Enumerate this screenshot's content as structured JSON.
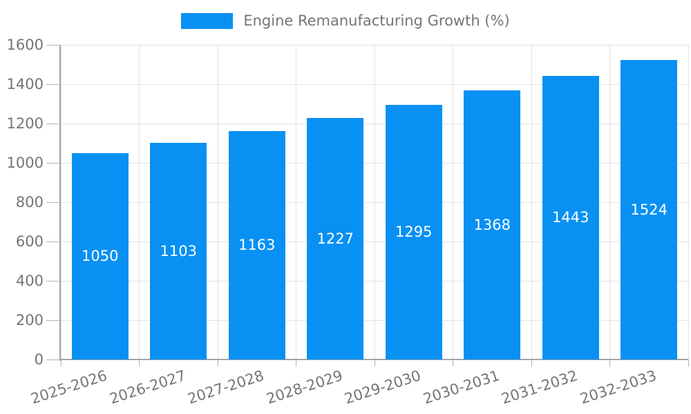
{
  "legend": {
    "label": "Engine Remanufacturing Growth (%)"
  },
  "colors": {
    "bar": "#0891f3",
    "axis_text": "#757575",
    "bar_label_text": "#ffffff",
    "gridline": "#e3e3e3",
    "tick": "#b3b3b3",
    "axis_line": "#a3a3a3",
    "background": "#ffffff"
  },
  "chart_data": {
    "type": "bar",
    "title": "Engine Remanufacturing Growth (%)",
    "categories": [
      "2025-2026",
      "2026-2027",
      "2027-2028",
      "2028-2029",
      "2029-2030",
      "2030-2031",
      "2031-2032",
      "2032-2033"
    ],
    "values": [
      1050,
      1103,
      1163,
      1227,
      1295,
      1368,
      1443,
      1524
    ],
    "xlabel": "",
    "ylabel": "",
    "ylim": [
      0,
      1600
    ],
    "y_ticks": [
      0,
      200,
      400,
      600,
      800,
      1000,
      1200,
      1400,
      1600
    ],
    "grid": true,
    "legend_position": "top-center",
    "bar_labels_inside": true
  }
}
